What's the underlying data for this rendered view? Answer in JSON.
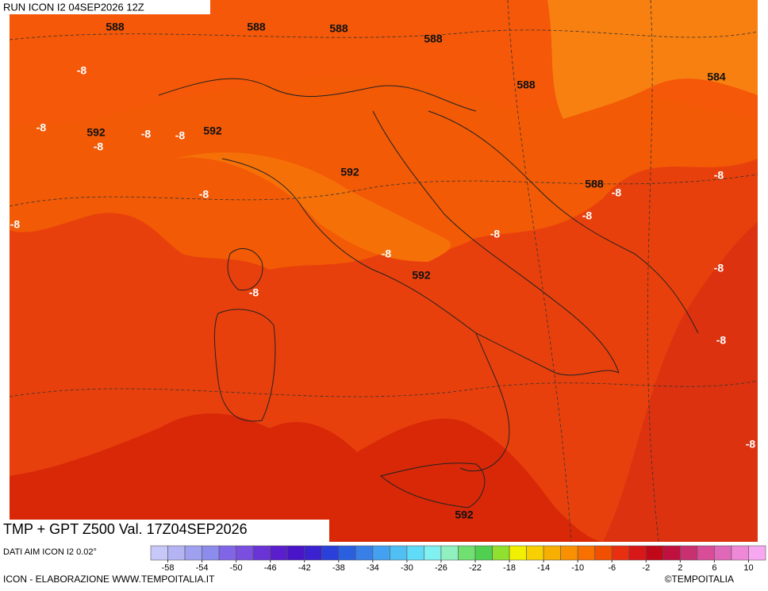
{
  "header": {
    "run": "RUN ICON I2 04SEP2026 12Z"
  },
  "footer": {
    "title": "TMP + GPT Z500 Val. 17Z04SEP2026",
    "source": "DATI AIM ICON I2 0.02°",
    "credit": "ICON - ELABORAZIONE WWW.TEMPOITALIA.IT",
    "brand": "©TEMPOITALIA"
  },
  "map": {
    "contour_labels": [
      588,
      588,
      588,
      588,
      588,
      584,
      592,
      592,
      592,
      588,
      592,
      592,
      -8,
      -8,
      -8,
      -8,
      -8,
      -8,
      -8,
      -8,
      -8,
      -8,
      -8,
      -8,
      -8,
      -8,
      -8,
      -8
    ]
  },
  "colorbar": {
    "lim": [
      -60,
      12
    ],
    "ticks": [
      -58,
      -54,
      -50,
      -46,
      -42,
      -38,
      -34,
      -30,
      -26,
      -22,
      -18,
      -14,
      -10,
      -6,
      -2,
      2,
      6,
      10
    ],
    "colors": [
      "#c8c8f8",
      "#b4b4f4",
      "#a0a0f0",
      "#8c8cec",
      "#8066e6",
      "#7a4fe0",
      "#6a33d6",
      "#5a1ecc",
      "#4a14c8",
      "#3a22d0",
      "#2a40d8",
      "#2a60e0",
      "#3880e8",
      "#44a0f0",
      "#50c0f4",
      "#60dcf8",
      "#80f0f0",
      "#90f0c0",
      "#70e070",
      "#50d050",
      "#90e030",
      "#f0f000",
      "#f8d000",
      "#f8b000",
      "#f89000",
      "#f87000",
      "#f05000",
      "#e83010",
      "#d81818",
      "#c00818",
      "#c01040",
      "#c83070",
      "#d84c98",
      "#e068b8",
      "#f088d8",
      "#f8a8f0"
    ]
  }
}
